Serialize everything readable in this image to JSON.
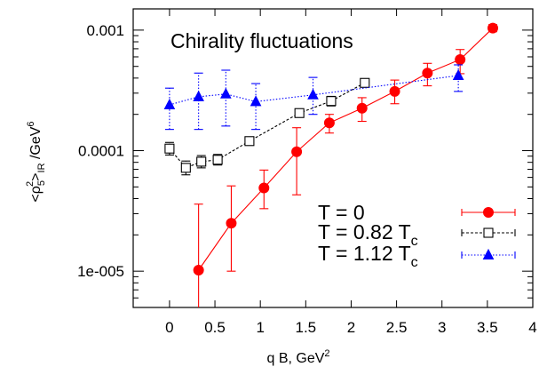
{
  "chart_data": {
    "type": "scatter",
    "title": "Chirality fluctuations",
    "xlabel": {
      "main": "q B, GeV",
      "sup": "2"
    },
    "ylabel": {
      "a": "<ρ",
      "a_sub": "5",
      "a_sup": "2",
      "b": ">",
      "b_sub": "IR",
      "c": " /GeV",
      "c_sup": "6"
    },
    "xlim": [
      -0.4,
      4
    ],
    "ylim": [
      5e-06,
      0.0015
    ],
    "yscale": "log",
    "grid": false,
    "legend_position": "lower-right",
    "xticks": [
      0,
      0.5,
      1,
      1.5,
      2,
      2.5,
      3,
      3.5,
      4
    ],
    "xtick_labels": [
      "0",
      "0.5",
      "1",
      "1.5",
      "2",
      "2.5",
      "3",
      "3.5",
      "4"
    ],
    "yticks": [
      1e-05,
      0.0001,
      0.001
    ],
    "ytick_labels": [
      "1e-005",
      "0.0001",
      "0.001"
    ],
    "series": [
      {
        "name": "T = 0",
        "legend_main": "T = 0",
        "legend_sub": "",
        "color": "#ff0000",
        "marker": "circle",
        "line": "solid",
        "x": [
          0.32,
          0.68,
          1.04,
          1.4,
          1.76,
          2.12,
          2.48,
          2.84,
          3.2,
          3.56
        ],
        "y": [
          1.02e-05,
          2.5e-05,
          4.9e-05,
          9.8e-05,
          0.00017,
          0.000225,
          0.00031,
          0.00044,
          0.00057,
          0.00104
        ],
        "ylo": [
          2e-06,
          1e-05,
          3.3e-05,
          4.3e-05,
          0.00014,
          0.000175,
          0.000245,
          0.000345,
          0.000435,
          0.00097
        ],
        "yhi": [
          3.6e-05,
          5.1e-05,
          6.9e-05,
          0.000155,
          0.0002,
          0.000275,
          0.000385,
          0.00053,
          0.00069,
          0.00111
        ]
      },
      {
        "name": "T = 0.82 Tc",
        "legend_main": "T = 0.82 T",
        "legend_sub": "c",
        "color": "#000000",
        "marker": "square-open",
        "line": "dashed",
        "x": [
          0.0,
          0.18,
          0.35,
          0.53,
          0.88,
          1.43,
          1.78,
          2.15
        ],
        "y": [
          0.000104,
          7.2e-05,
          8.1e-05,
          8.4e-05,
          0.00012,
          0.000205,
          0.000258,
          0.000365
        ],
        "ylo": [
          9.2e-05,
          6.3e-05,
          7.2e-05,
          7.6e-05,
          0.000115,
          0.000195,
          0.000235,
          0.000345
        ],
        "yhi": [
          0.000117,
          8.2e-05,
          9.1e-05,
          9.3e-05,
          0.000126,
          0.000216,
          0.000282,
          0.000385
        ]
      },
      {
        "name": "T = 1.12 Tc",
        "legend_main": "T = 1.12 T",
        "legend_sub": "c",
        "color": "#0000ff",
        "marker": "triangle",
        "line": "dotted",
        "x": [
          0.0,
          0.32,
          0.62,
          0.95,
          1.58,
          3.18
        ],
        "y": [
          0.00024,
          0.00028,
          0.000295,
          0.000255,
          0.00029,
          0.00042
        ],
        "ylo": [
          0.00015,
          0.00015,
          0.00016,
          0.00015,
          0.0002,
          0.00031
        ],
        "yhi": [
          0.00033,
          0.00044,
          0.000465,
          0.00036,
          0.000405,
          0.000515
        ]
      }
    ]
  }
}
